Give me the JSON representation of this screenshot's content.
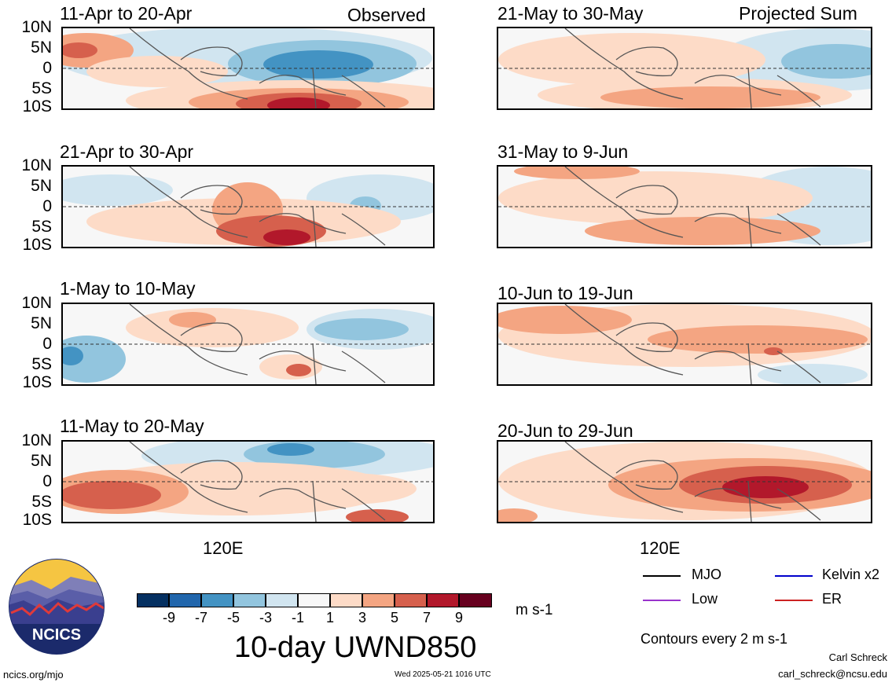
{
  "header": {
    "left_label": "Observed",
    "right_label": "Projected Sum"
  },
  "lat_ticks": [
    "10N",
    "5N",
    "0",
    "5S",
    "10S"
  ],
  "lon_tick": "120E",
  "panels": [
    {
      "title": "11-Apr to 20-Apr",
      "group": "Observed"
    },
    {
      "title": "21-Apr to 30-Apr",
      "group": "Observed"
    },
    {
      "title": "1-May to 10-May",
      "group": "Observed"
    },
    {
      "title": "11-May to 20-May",
      "group": "Observed"
    },
    {
      "title": "21-May to 30-May",
      "group": "Projected Sum"
    },
    {
      "title": "31-May to 9-Jun",
      "group": "Projected Sum"
    },
    {
      "title": "10-Jun to 19-Jun",
      "group": "Projected Sum"
    },
    {
      "title": "20-Jun to 29-Jun",
      "group": "Projected Sum"
    }
  ],
  "colorbar": {
    "ticks": [
      "-9",
      "-7",
      "-5",
      "-3",
      "-1",
      "1",
      "3",
      "5",
      "7",
      "9"
    ],
    "colors": [
      "#053061",
      "#2166ac",
      "#4393c3",
      "#92c5de",
      "#d1e5f0",
      "#f7f7f7",
      "#fddbc7",
      "#f4a582",
      "#d6604d",
      "#b2182b",
      "#67001f"
    ],
    "units": "m s-1",
    "title": "10-day UWND850"
  },
  "legend": {
    "items": [
      {
        "label": "MJO",
        "color": "#000000"
      },
      {
        "label": "Kelvin x2",
        "color": "#0000cc"
      },
      {
        "label": "Low",
        "color": "#9933cc"
      },
      {
        "label": "ER",
        "color": "#cc2222"
      }
    ],
    "note": "Contours every 2 m s-1"
  },
  "logo": {
    "text": "NCICS"
  },
  "footer": {
    "left": "ncics.org/mjo",
    "center": "Wed 2025-05-21 1016 UTC",
    "author": "Carl Schreck",
    "email": "carl_schreck@ncsu.edu"
  }
}
